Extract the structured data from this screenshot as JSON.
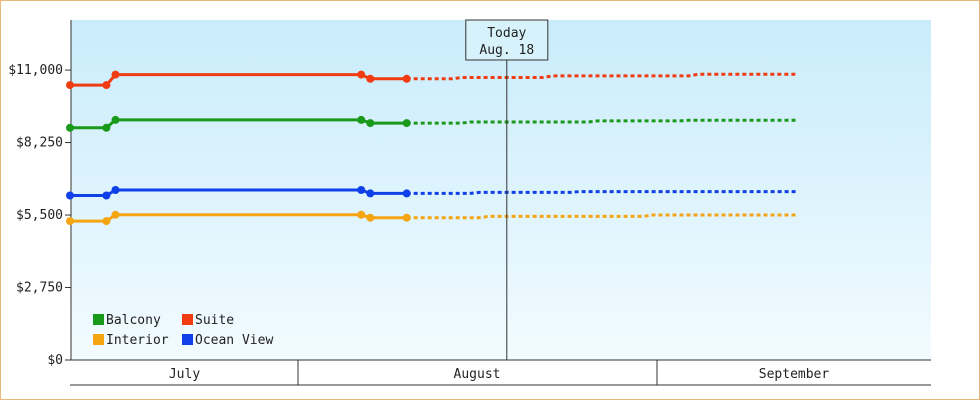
{
  "chart_data": {
    "type": "line",
    "y_ticks": [
      "$0",
      "$2,750",
      "$5,500",
      "$8,250",
      "$11,000"
    ],
    "ylim": [
      0,
      12900
    ],
    "months": [
      "July",
      "August",
      "September"
    ],
    "today": {
      "label": "Today",
      "date": "Aug. 18",
      "day": 48
    },
    "grid": false,
    "legend_position": "bottom-left",
    "series": [
      {
        "name": "Balcony",
        "color": "#1a9a1a",
        "actual": [
          [
            0,
            8810
          ],
          [
            4,
            8810
          ],
          [
            5,
            9110
          ],
          [
            32,
            9110
          ],
          [
            33,
            8990
          ],
          [
            37,
            8990
          ]
        ],
        "projected": [
          [
            37,
            8990
          ],
          [
            43,
            8990
          ],
          [
            44,
            9030
          ],
          [
            57,
            9030
          ],
          [
            58,
            9070
          ],
          [
            67,
            9070
          ],
          [
            68,
            9100
          ],
          [
            80,
            9100
          ]
        ]
      },
      {
        "name": "Suite",
        "color": "#f03c10",
        "actual": [
          [
            0,
            10430
          ],
          [
            4,
            10430
          ],
          [
            5,
            10830
          ],
          [
            32,
            10830
          ],
          [
            33,
            10670
          ],
          [
            37,
            10670
          ]
        ],
        "projected": [
          [
            37,
            10670
          ],
          [
            42,
            10670
          ],
          [
            43,
            10720
          ],
          [
            52,
            10720
          ],
          [
            53,
            10780
          ],
          [
            68,
            10780
          ],
          [
            69,
            10840
          ],
          [
            80,
            10840
          ]
        ]
      },
      {
        "name": "Interior",
        "color": "#f5a412",
        "actual": [
          [
            0,
            5270
          ],
          [
            4,
            5270
          ],
          [
            5,
            5510
          ],
          [
            32,
            5510
          ],
          [
            33,
            5400
          ],
          [
            37,
            5400
          ]
        ],
        "projected": [
          [
            37,
            5400
          ],
          [
            45,
            5400
          ],
          [
            46,
            5450
          ],
          [
            63,
            5450
          ],
          [
            64,
            5500
          ],
          [
            80,
            5500
          ]
        ]
      },
      {
        "name": "Ocean View",
        "color": "#1040e8",
        "actual": [
          [
            0,
            6240
          ],
          [
            4,
            6240
          ],
          [
            5,
            6450
          ],
          [
            32,
            6450
          ],
          [
            33,
            6320
          ],
          [
            37,
            6320
          ]
        ],
        "projected": [
          [
            37,
            6320
          ],
          [
            44,
            6320
          ],
          [
            45,
            6360
          ],
          [
            55,
            6360
          ],
          [
            56,
            6390
          ],
          [
            80,
            6390
          ]
        ]
      }
    ]
  }
}
